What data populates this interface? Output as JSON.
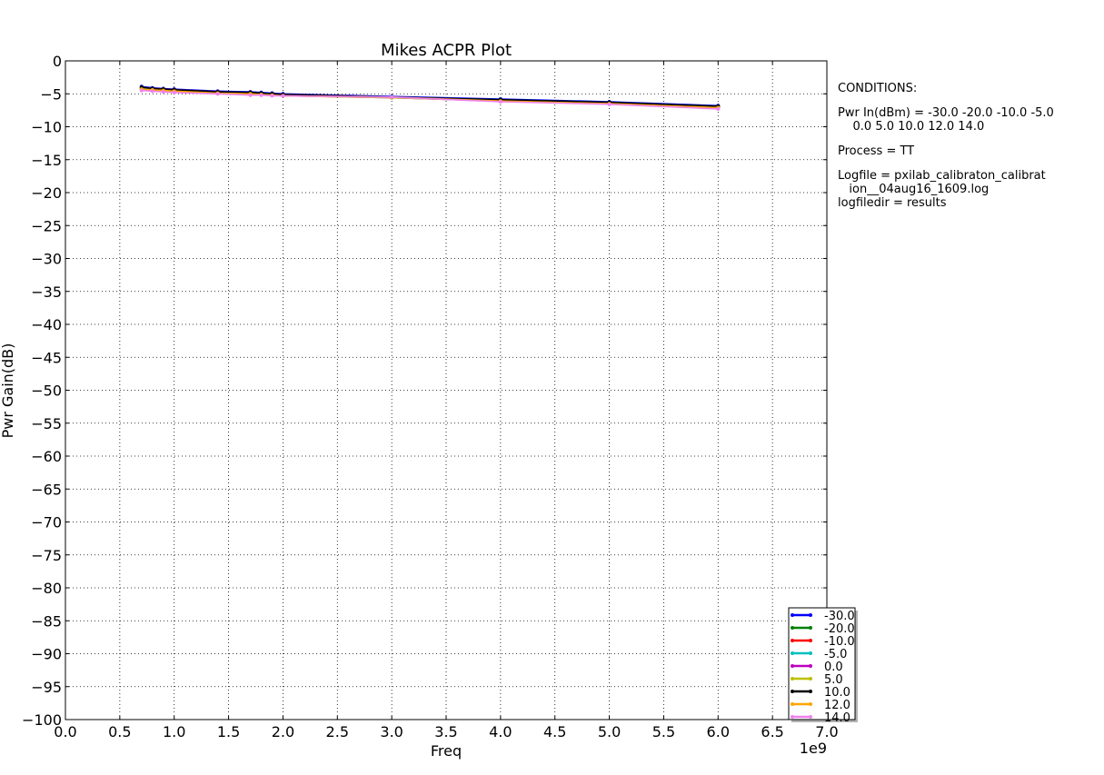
{
  "chart_data": {
    "type": "line",
    "title": "Mikes ACPR Plot",
    "xlabel": "Freq",
    "ylabel": "Pwr Gain(dB)",
    "x_offset_label": "1e9",
    "xlim": [
      0.0,
      7.0
    ],
    "ylim": [
      -100,
      0
    ],
    "xticks": [
      "0.0",
      "0.5",
      "1.0",
      "1.5",
      "2.0",
      "2.5",
      "3.0",
      "3.5",
      "4.0",
      "4.5",
      "5.0",
      "5.5",
      "6.0",
      "6.5",
      "7.0"
    ],
    "yticks": [
      "0",
      "−5",
      "−10",
      "−15",
      "−20",
      "−25",
      "−30",
      "−35",
      "−40",
      "−45",
      "−50",
      "−55",
      "−60",
      "−65",
      "−70",
      "−75",
      "−80",
      "−85",
      "−90",
      "−95",
      "−100"
    ],
    "grid": true,
    "legend_position": "bottom-right",
    "x": [
      0.7,
      0.8,
      0.9,
      1.0,
      1.4,
      1.7,
      1.8,
      1.9,
      2.0,
      3.0,
      4.0,
      5.0,
      6.0
    ],
    "series": [
      {
        "name": "-30.0",
        "color": "#0000ff",
        "values": [
          -3.9,
          -4.1,
          -4.2,
          -4.3,
          -4.6,
          -4.7,
          -4.8,
          -4.9,
          -5.0,
          -5.4,
          -5.8,
          -6.2,
          -6.8
        ]
      },
      {
        "name": "-20.0",
        "color": "#008000",
        "values": [
          -4.0,
          -4.2,
          -4.3,
          -4.4,
          -4.7,
          -4.8,
          -4.9,
          -5.0,
          -5.1,
          -5.5,
          -5.9,
          -6.3,
          -6.9
        ]
      },
      {
        "name": "-10.0",
        "color": "#ff0000",
        "values": [
          -4.1,
          -4.2,
          -4.3,
          -4.4,
          -4.7,
          -4.9,
          -5.0,
          -5.0,
          -5.1,
          -5.5,
          -6.0,
          -6.4,
          -7.0
        ]
      },
      {
        "name": "-5.0",
        "color": "#00bfbf",
        "values": [
          -4.2,
          -4.3,
          -4.4,
          -4.5,
          -4.8,
          -5.0,
          -5.0,
          -5.1,
          -5.2,
          -5.5,
          -6.0,
          -6.4,
          -7.0
        ]
      },
      {
        "name": "0.0",
        "color": "#bf00bf",
        "values": [
          -4.3,
          -4.4,
          -4.5,
          -4.6,
          -4.9,
          -5.0,
          -5.1,
          -5.2,
          -5.3,
          -5.6,
          -6.1,
          -6.5,
          -7.1
        ]
      },
      {
        "name": "5.0",
        "color": "#bfbf00",
        "values": [
          -4.3,
          -4.4,
          -4.5,
          -4.6,
          -4.9,
          -5.0,
          -5.1,
          -5.2,
          -5.3,
          -5.6,
          -6.1,
          -6.5,
          -7.1
        ]
      },
      {
        "name": "10.0",
        "color": "#000000",
        "values": [
          -4.0,
          -4.2,
          -4.3,
          -4.4,
          -4.7,
          -4.8,
          -4.9,
          -5.0,
          -5.1,
          -5.5,
          -5.9,
          -6.3,
          -6.9
        ]
      },
      {
        "name": "12.0",
        "color": "#ffa500",
        "values": [
          -4.3,
          -4.4,
          -4.5,
          -4.6,
          -4.9,
          -5.0,
          -5.1,
          -5.2,
          -5.3,
          -5.5,
          -6.1,
          -6.5,
          -7.1
        ]
      },
      {
        "name": "14.0",
        "color": "#ee82ee",
        "values": [
          -4.5,
          -4.6,
          -4.7,
          -4.8,
          -5.0,
          -5.2,
          -5.2,
          -5.3,
          -5.3,
          -5.5,
          -6.2,
          -6.6,
          -7.3
        ]
      }
    ]
  },
  "conditions": {
    "heading": "CONDITIONS:",
    "pwr_in_line1": "Pwr In(dBm) = -30.0 -20.0 -10.0 -5.0",
    "pwr_in_line2": "    0.0 5.0 10.0 12.0 14.0",
    "process": "Process = TT",
    "logfile_line1": "Logfile = pxilab_calibraton_calibrat",
    "logfile_line2": "   ion__04aug16_1609.log",
    "logfiledir": "logfiledir = results"
  }
}
